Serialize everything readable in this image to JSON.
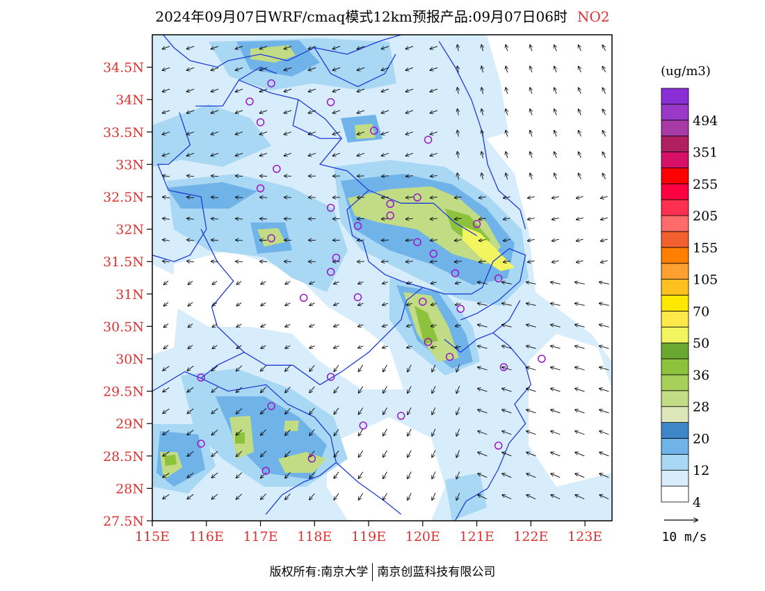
{
  "header": {
    "title": "2024年09月07日WRF/cmaq模式12km预报产品:09月07日06时",
    "species": "NO2"
  },
  "map": {
    "lat_labels": [
      "34.5N",
      "34N",
      "33.5N",
      "33N",
      "32.5N",
      "32N",
      "31.5N",
      "31N",
      "30.5N",
      "30N",
      "29.5N",
      "29N",
      "28.5N",
      "28N",
      "27.5N"
    ],
    "lon_labels": [
      "115E",
      "116E",
      "117E",
      "118E",
      "119E",
      "120E",
      "121E",
      "122E",
      "123E"
    ],
    "lat_values": [
      34.5,
      34,
      33.5,
      33,
      32.5,
      32,
      31.5,
      31,
      30.5,
      30,
      29.5,
      29,
      28.5,
      28,
      27.5
    ],
    "lon_values": [
      115,
      116,
      117,
      118,
      119,
      120,
      121,
      122,
      123
    ],
    "extent": {
      "lon_min": 115,
      "lon_max": 123.5,
      "lat_min": 27.5,
      "lat_max": 35
    },
    "label_color": "#e03030",
    "boundary_color": "#1f3bd6",
    "station_color": "#9a16c8",
    "wind_vector_color": "#000000"
  },
  "colorbar": {
    "unit_label": "(ug/m3)",
    "segments": [
      {
        "color": "#ffffff",
        "label": "4"
      },
      {
        "color": "#d8edfb",
        "label": ""
      },
      {
        "color": "#a9d8f5",
        "label": "12"
      },
      {
        "color": "#6fb3e8",
        "label": ""
      },
      {
        "color": "#3f86c8",
        "label": "20"
      },
      {
        "color": "#dde6b8",
        "label": ""
      },
      {
        "color": "#c2dc86",
        "label": "28"
      },
      {
        "color": "#a6d05a",
        "label": ""
      },
      {
        "color": "#8cc23c",
        "label": "36"
      },
      {
        "color": "#6aa832",
        "label": ""
      },
      {
        "color": "#f2f560",
        "label": "50"
      },
      {
        "color": "#ffe94a",
        "label": ""
      },
      {
        "color": "#ffe800",
        "label": "70"
      },
      {
        "color": "#ffc020",
        "label": ""
      },
      {
        "color": "#ffa030",
        "label": "105"
      },
      {
        "color": "#ff8000",
        "label": ""
      },
      {
        "color": "#f26030",
        "label": "155"
      },
      {
        "color": "#ff6a6a",
        "label": ""
      },
      {
        "color": "#ff3050",
        "label": "205"
      },
      {
        "color": "#ff0040",
        "label": ""
      },
      {
        "color": "#ff0000",
        "label": "255"
      },
      {
        "color": "#d8106a",
        "label": ""
      },
      {
        "color": "#b02060",
        "label": "351"
      },
      {
        "color": "#a83aa8",
        "label": ""
      },
      {
        "color": "#9a38c8",
        "label": "494"
      },
      {
        "color": "#8a2fd8",
        "label": ""
      }
    ]
  },
  "wind_legend": {
    "label": "10 m/s"
  },
  "footer": {
    "copyright": "版权所有:南京大学",
    "partner": "南京创蓝科技有限公司"
  },
  "stations": [
    {
      "lon": 117.2,
      "lat": 34.25
    },
    {
      "lon": 116.8,
      "lat": 33.97
    },
    {
      "lon": 118.3,
      "lat": 33.96
    },
    {
      "lon": 117.0,
      "lat": 33.65
    },
    {
      "lon": 119.1,
      "lat": 33.52
    },
    {
      "lon": 120.1,
      "lat": 33.38
    },
    {
      "lon": 117.3,
      "lat": 32.93
    },
    {
      "lon": 117.0,
      "lat": 32.63
    },
    {
      "lon": 119.9,
      "lat": 32.49
    },
    {
      "lon": 119.4,
      "lat": 32.39
    },
    {
      "lon": 118.3,
      "lat": 32.33
    },
    {
      "lon": 119.4,
      "lat": 32.21
    },
    {
      "lon": 118.8,
      "lat": 32.05
    },
    {
      "lon": 121.0,
      "lat": 32.08
    },
    {
      "lon": 117.2,
      "lat": 31.86
    },
    {
      "lon": 119.9,
      "lat": 31.8
    },
    {
      "lon": 120.2,
      "lat": 31.62
    },
    {
      "lon": 118.4,
      "lat": 31.56
    },
    {
      "lon": 118.3,
      "lat": 31.34
    },
    {
      "lon": 120.6,
      "lat": 31.32
    },
    {
      "lon": 121.4,
      "lat": 31.24
    },
    {
      "lon": 117.8,
      "lat": 30.94
    },
    {
      "lon": 118.8,
      "lat": 30.95
    },
    {
      "lon": 120.0,
      "lat": 30.88
    },
    {
      "lon": 120.7,
      "lat": 30.77
    },
    {
      "lon": 120.1,
      "lat": 30.26
    },
    {
      "lon": 120.5,
      "lat": 30.03
    },
    {
      "lon": 121.5,
      "lat": 29.87
    },
    {
      "lon": 122.2,
      "lat": 30.0
    },
    {
      "lon": 115.9,
      "lat": 29.71
    },
    {
      "lon": 118.3,
      "lat": 29.72
    },
    {
      "lon": 117.2,
      "lat": 29.27
    },
    {
      "lon": 119.6,
      "lat": 29.12
    },
    {
      "lon": 118.9,
      "lat": 28.97
    },
    {
      "lon": 121.4,
      "lat": 28.66
    },
    {
      "lon": 115.9,
      "lat": 28.69
    },
    {
      "lon": 117.95,
      "lat": 28.46
    },
    {
      "lon": 117.1,
      "lat": 28.27
    }
  ]
}
